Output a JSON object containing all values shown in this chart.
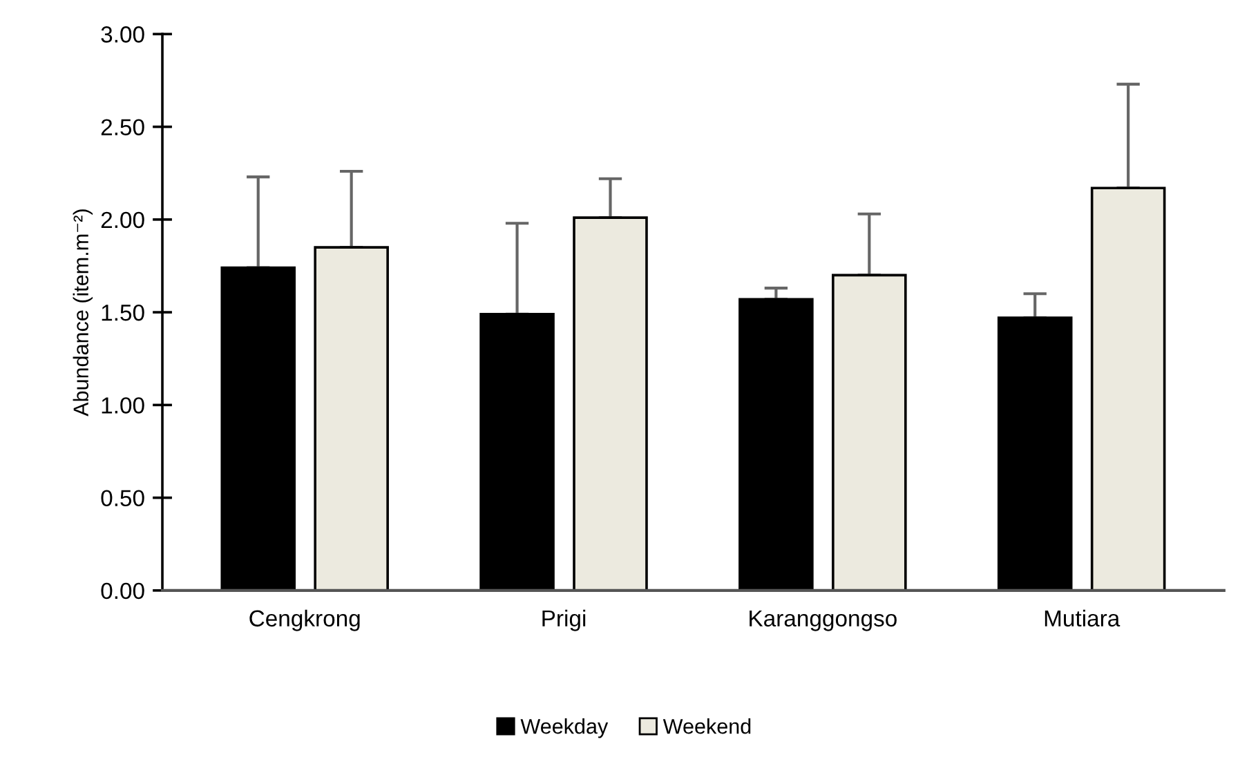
{
  "chart_data": {
    "type": "bar",
    "ylabel": "Abundance (item.m⁻²)",
    "categories": [
      "Cengkrong",
      "Prigi",
      "Karanggongso",
      "Mutiara"
    ],
    "series": [
      {
        "name": "Weekday",
        "color": "#000000",
        "values": [
          1.74,
          1.49,
          1.57,
          1.47
        ],
        "errors": [
          [
            1.74,
            2.23
          ],
          [
            1.49,
            1.98
          ],
          [
            1.57,
            1.63
          ],
          [
            1.47,
            1.6
          ]
        ]
      },
      {
        "name": "Weekend",
        "color": "#eceadf",
        "values": [
          1.85,
          2.01,
          1.7,
          2.17
        ],
        "errors": [
          [
            1.85,
            2.26
          ],
          [
            2.01,
            2.22
          ],
          [
            1.7,
            2.03
          ],
          [
            2.17,
            2.73
          ]
        ]
      }
    ],
    "ylim": [
      0,
      3
    ],
    "yticks": [
      {
        "value": 0,
        "label": "0.00"
      },
      {
        "value": 0.5,
        "label": "0.50"
      },
      {
        "value": 1,
        "label": "1.00"
      },
      {
        "value": 1.5,
        "label": "1.50"
      },
      {
        "value": 2,
        "label": "2.00"
      },
      {
        "value": 2.5,
        "label": "2.50"
      },
      {
        "value": 3,
        "label": "3.00"
      }
    ],
    "legend": "bottom",
    "grid": false
  }
}
